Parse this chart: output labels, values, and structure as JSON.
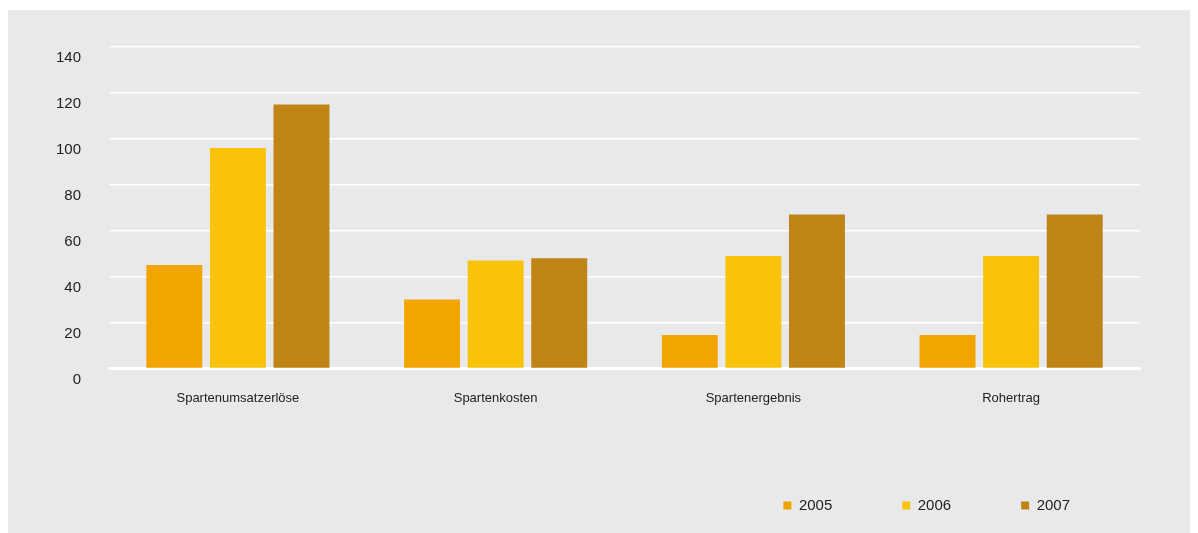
{
  "chart_data": {
    "type": "bar",
    "categories": [
      "Spartenumsatzerlöse",
      "Spartenkosten",
      "Spartenergebnis",
      "Rohertrag"
    ],
    "series": [
      {
        "name": "2005",
        "color": "#f2a500",
        "values": [
          45,
          30,
          14.5,
          14.5
        ]
      },
      {
        "name": "2006",
        "color": "#f9c30b",
        "values": [
          96,
          47,
          49,
          49
        ]
      },
      {
        "name": "2007",
        "color": "#c08316",
        "values": [
          115,
          48,
          67,
          67
        ]
      }
    ],
    "ylim": [
      0,
      140
    ],
    "yticks": [
      0,
      20,
      40,
      60,
      80,
      100,
      120,
      140
    ],
    "grid": "y",
    "legend": "bottom right"
  }
}
